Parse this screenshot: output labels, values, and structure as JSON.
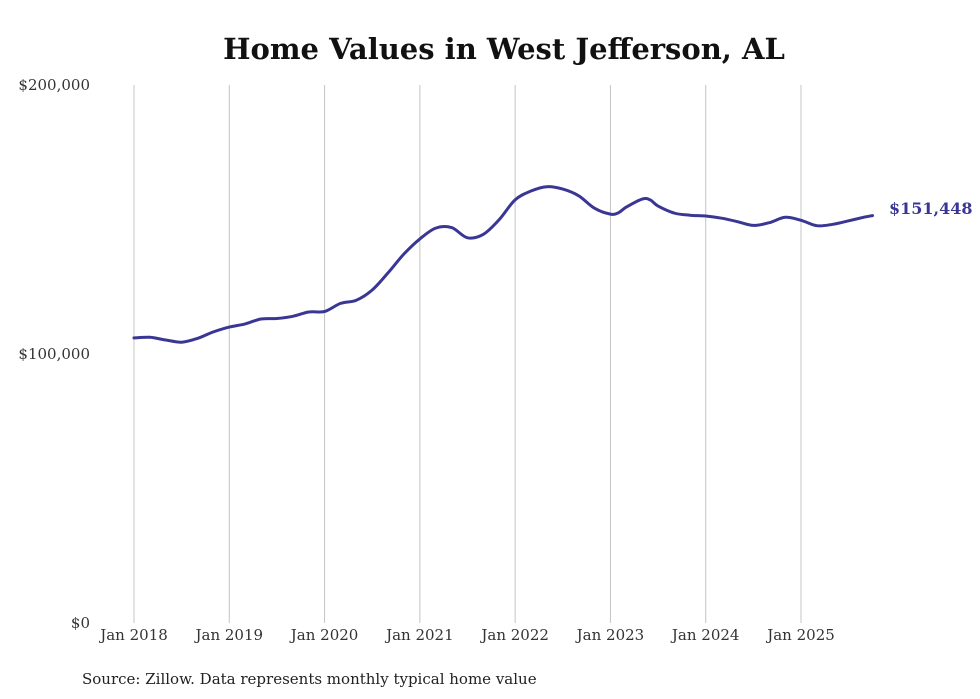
{
  "chart_data": {
    "type": "line",
    "title": "Home Values in West Jefferson, AL",
    "xlabel": "",
    "ylabel": "",
    "ylim": [
      0,
      200000
    ],
    "y_ticks": [
      {
        "value": 0,
        "label": "$0"
      },
      {
        "value": 100000,
        "label": "$100,000"
      },
      {
        "value": 200000,
        "label": "$200,000"
      }
    ],
    "x_ticks": [
      {
        "value": "2018-01",
        "label": "Jan 2018"
      },
      {
        "value": "2019-01",
        "label": "Jan 2019"
      },
      {
        "value": "2020-01",
        "label": "Jan 2020"
      },
      {
        "value": "2021-01",
        "label": "Jan 2021"
      },
      {
        "value": "2022-01",
        "label": "Jan 2022"
      },
      {
        "value": "2023-01",
        "label": "Jan 2023"
      },
      {
        "value": "2024-01",
        "label": "Jan 2024"
      },
      {
        "value": "2025-01",
        "label": "Jan 2025"
      }
    ],
    "grid": "vertical",
    "line_color": "#3a3694",
    "end_label": "$151,448",
    "series": [
      {
        "x": [
          "2018-01",
          "2018-03",
          "2018-05",
          "2018-07",
          "2018-09",
          "2018-11",
          "2019-01",
          "2019-03",
          "2019-05",
          "2019-07",
          "2019-09",
          "2019-11",
          "2020-01",
          "2020-03",
          "2020-05",
          "2020-07",
          "2020-09",
          "2020-11",
          "2021-01",
          "2021-03",
          "2021-05",
          "2021-07",
          "2021-09",
          "2021-11",
          "2022-01",
          "2022-03",
          "2022-05",
          "2022-07",
          "2022-09",
          "2022-11",
          "2023-01",
          "2023-02",
          "2023-03",
          "2023-05",
          "2023-06",
          "2023-07",
          "2023-09",
          "2023-11",
          "2024-01",
          "2024-03",
          "2024-05",
          "2024-07",
          "2024-09",
          "2024-11",
          "2025-01",
          "2025-03",
          "2025-05",
          "2025-07",
          "2025-09",
          "2025-10"
        ],
        "values": [
          106000,
          106200,
          105200,
          104400,
          105800,
          108200,
          110000,
          111200,
          113000,
          113200,
          114000,
          115600,
          115800,
          118800,
          120000,
          123800,
          130200,
          137200,
          142800,
          146800,
          147000,
          143200,
          144500,
          150000,
          157300,
          160600,
          162200,
          161300,
          158800,
          154200,
          152000,
          152500,
          154600,
          157600,
          157300,
          155000,
          152400,
          151600,
          151300,
          150500,
          149200,
          147800,
          148800,
          150800,
          149700,
          147700,
          148200,
          149500,
          150900,
          151448
        ]
      }
    ]
  },
  "source_text": "Source: Zillow. Data represents monthly typical home value"
}
